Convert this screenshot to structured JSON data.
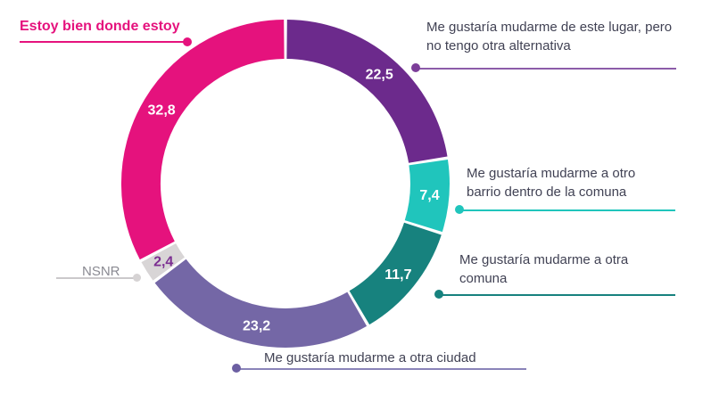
{
  "chart_data": {
    "type": "pie",
    "subtype": "donut",
    "title": "",
    "units": "percent",
    "start_angle_deg": 0,
    "direction": "clockwise",
    "legend_position": "callouts",
    "segments": [
      {
        "label": "Me gustaría mudarme de este lugar, pero no tengo otra alternativa",
        "value": 22.5,
        "display": "22,5",
        "color": "#6C2A8C",
        "value_label_color": "#FFFFFF"
      },
      {
        "label": "Me gustaría mudarme a otro barrio dentro de la comuna",
        "value": 7.4,
        "display": "7,4",
        "color": "#20C5BC",
        "value_label_color": "#FFFFFF"
      },
      {
        "label": "Me gustaría mudarme a otra comuna",
        "value": 11.7,
        "display": "11,7",
        "color": "#17827E",
        "value_label_color": "#FFFFFF"
      },
      {
        "label": "Me gustaría mudarme a otra ciudad",
        "value": 23.2,
        "display": "23,2",
        "color": "#7467A6",
        "value_label_color": "#FFFFFF"
      },
      {
        "label": "NSNR",
        "value": 2.4,
        "display": "2,4",
        "color": "#D8D5D6",
        "value_label_color": "#7B2E91"
      },
      {
        "label": "Estoy bien donde estoy",
        "value": 32.8,
        "display": "32,8",
        "color": "#E5127D",
        "value_label_color": "#FFFFFF"
      }
    ]
  },
  "callouts": [
    {
      "text": "Estoy bien donde estoy",
      "text_color": "#E5127D",
      "line_color": "#E5127D",
      "dot_color": "#E5127D"
    },
    {
      "text": "Me gustaría mudarme de este lugar, pero\nno tengo otra alternativa",
      "text_color": "#414254",
      "line_color": "#8C5CA9",
      "dot_color": "#7C3E99"
    },
    {
      "text": "Me gustaría mudarme a otro\nbarrio dentro de la comuna",
      "text_color": "#414254",
      "line_color": "#20C5BC",
      "dot_color": "#20C5BC"
    },
    {
      "text": "Me gustaría mudarme a otra\ncomuna",
      "text_color": "#414254",
      "line_color": "#17827E",
      "dot_color": "#17827E"
    },
    {
      "text": "NSNR",
      "text_color": "#8A8A92",
      "line_color": "#CBC9CB",
      "dot_color": "#D6D3D4"
    },
    {
      "text": "Me gustaría mudarme a otra ciudad",
      "text_color": "#414254",
      "line_color": "#8A83B9",
      "dot_color": "#6C5FA2"
    }
  ]
}
